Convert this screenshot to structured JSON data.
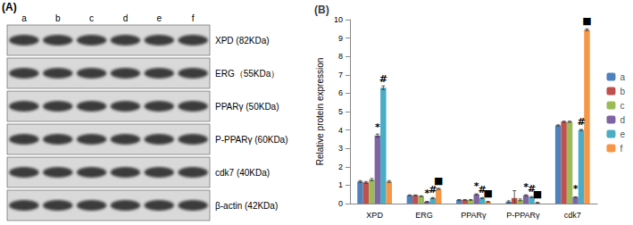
{
  "blot": {
    "label": "(A)",
    "lanes": [
      "a",
      "b",
      "c",
      "d",
      "e",
      "f"
    ],
    "rows": [
      "XPD (82KDa)",
      "ERG（55KDa）",
      "PPARγ (50KDa)",
      "P-PPARγ (60KDa)",
      "cdk7 (40KDa)",
      "β-actin (42KDa)"
    ]
  },
  "chart_data": {
    "type": "bar",
    "title": "(B)",
    "y_label": "Relative protein expression",
    "categories": [
      "XPD",
      "ERG",
      "PPARγ",
      "P-PPARγ",
      "cdk7"
    ],
    "series": [
      {
        "name": "a",
        "color": "#4F81BD",
        "values": [
          1.2,
          0.45,
          0.2,
          0.1,
          4.25
        ],
        "errors": [
          0.05,
          0.02,
          0.02,
          0.05,
          0.03
        ]
      },
      {
        "name": "b",
        "color": "#C0504D",
        "values": [
          1.15,
          0.45,
          0.2,
          0.3,
          4.45
        ],
        "errors": [
          0.05,
          0.02,
          0.02,
          0.4,
          0.03
        ]
      },
      {
        "name": "c",
        "color": "#9BBB59",
        "values": [
          1.3,
          0.4,
          0.2,
          0.2,
          4.45
        ],
        "errors": [
          0.06,
          0.02,
          0.02,
          0.05,
          0.03
        ]
      },
      {
        "name": "d",
        "color": "#8064A2",
        "values": [
          3.7,
          0.1,
          0.5,
          0.45,
          0.35
        ],
        "errors": [
          0.08,
          0.02,
          0.03,
          0.03,
          0.02
        ]
      },
      {
        "name": "e",
        "color": "#4BACC6",
        "values": [
          6.3,
          0.3,
          0.3,
          0.35,
          4.0
        ],
        "errors": [
          0.1,
          0.03,
          0.02,
          0.03,
          0.03
        ]
      },
      {
        "name": "f",
        "color": "#F79646",
        "values": [
          1.2,
          0.8,
          0.1,
          0.05,
          9.45
        ],
        "errors": [
          0.05,
          0.03,
          0.02,
          0.02,
          0.05
        ]
      }
    ],
    "annotations": [
      {
        "category": "XPD",
        "series": "d",
        "text": "*"
      },
      {
        "category": "XPD",
        "series": "e",
        "text": "#"
      },
      {
        "category": "ERG",
        "series": "d",
        "text": "*"
      },
      {
        "category": "ERG",
        "series": "e",
        "text": "#"
      },
      {
        "category": "ERG",
        "series": "f",
        "text": "■"
      },
      {
        "category": "PPARγ",
        "series": "d",
        "text": "*"
      },
      {
        "category": "PPARγ",
        "series": "e",
        "text": "#"
      },
      {
        "category": "PPARγ",
        "series": "f",
        "text": "■"
      },
      {
        "category": "P-PPARγ",
        "series": "d",
        "text": "*"
      },
      {
        "category": "P-PPARγ",
        "series": "e",
        "text": "#"
      },
      {
        "category": "P-PPARγ",
        "series": "f",
        "text": "■"
      },
      {
        "category": "cdk7",
        "series": "d",
        "text": "*"
      },
      {
        "category": "cdk7",
        "series": "e",
        "text": "#"
      },
      {
        "category": "cdk7",
        "series": "f",
        "text": "■"
      }
    ],
    "ylim": [
      0,
      10
    ],
    "yticks": [
      0,
      1,
      2,
      3,
      4,
      5,
      6,
      7,
      8,
      9,
      10
    ],
    "grid": false,
    "legend": "right"
  }
}
